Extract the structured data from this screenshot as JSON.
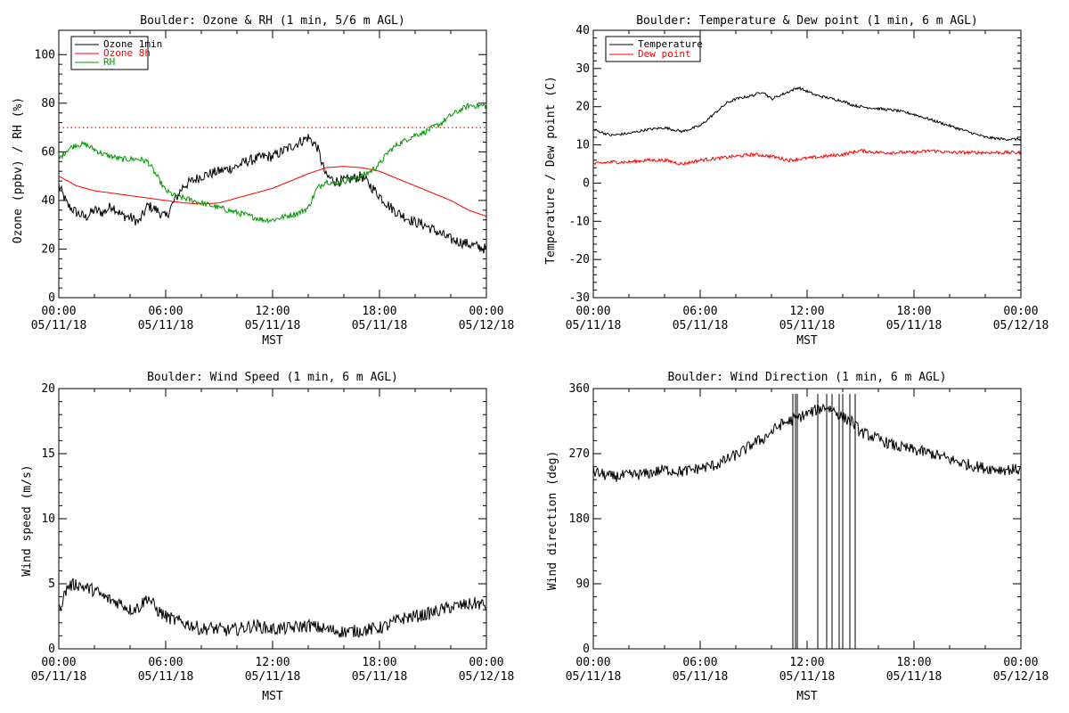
{
  "chart_data": [
    {
      "type": "line",
      "title": "Boulder: Ozone & RH (1 min, 5/6 m AGL)",
      "xlabel": "MST",
      "ylabel": "Ozone (ppbv) / RH (%)",
      "xlim": [
        0,
        24
      ],
      "ylim": [
        0,
        110
      ],
      "xticks": [
        {
          "v": 0,
          "time": "00:00",
          "date": "05/11/18"
        },
        {
          "v": 6,
          "time": "06:00",
          "date": "05/11/18"
        },
        {
          "v": 12,
          "time": "12:00",
          "date": "05/11/18"
        },
        {
          "v": 18,
          "time": "18:00",
          "date": "05/11/18"
        },
        {
          "v": 24,
          "time": "00:00",
          "date": "05/12/18"
        }
      ],
      "yticks": [
        0,
        20,
        40,
        60,
        80,
        100
      ],
      "reference_line": {
        "y": 70,
        "color": "#ff0000",
        "style": "dotted"
      },
      "legend_position": "top-left",
      "series": [
        {
          "name": "Ozone 1min",
          "color": "#000000",
          "noise": 2.2,
          "x": [
            0,
            0.5,
            1,
            1.5,
            2,
            2.5,
            3,
            3.5,
            4,
            4.5,
            5,
            5.5,
            6,
            6.5,
            7,
            7.5,
            8,
            8.5,
            9,
            9.5,
            10,
            10.5,
            11,
            11.5,
            12,
            12.5,
            13,
            13.5,
            14,
            14.5,
            15,
            15.5,
            16,
            16.5,
            17,
            17.5,
            18,
            18.5,
            19,
            19.5,
            20,
            20.5,
            21,
            21.5,
            22,
            22.5,
            23,
            23.5,
            24
          ],
          "y": [
            46,
            38,
            35,
            33,
            36,
            35,
            38,
            34,
            33,
            31,
            38,
            36,
            33,
            40,
            46,
            48,
            50,
            51,
            52,
            53,
            54,
            56,
            57,
            58,
            58,
            60,
            62,
            64,
            66,
            62,
            50,
            48,
            48,
            49,
            50,
            46,
            42,
            38,
            35,
            33,
            31,
            30,
            28,
            26,
            24,
            23,
            22,
            21,
            20
          ]
        },
        {
          "name": "Ozone 8h",
          "color": "#ff0000",
          "noise": 0,
          "x": [
            0,
            1,
            2,
            3,
            4,
            5,
            6,
            7,
            8,
            9,
            10,
            11,
            12,
            13,
            14,
            15,
            16,
            17,
            18,
            19,
            20,
            21,
            22,
            23,
            24
          ],
          "y": [
            50,
            46,
            44,
            43,
            42,
            41,
            40,
            39,
            38.5,
            39,
            41,
            43,
            45,
            48,
            51,
            53.5,
            54,
            53.5,
            52,
            49,
            46,
            43,
            40,
            36,
            33.5
          ]
        },
        {
          "name": "RH",
          "color": "#009900",
          "noise": 1.2,
          "x": [
            0,
            0.5,
            1,
            1.5,
            2,
            2.5,
            3,
            3.5,
            4,
            4.5,
            5,
            5.5,
            6,
            6.5,
            7,
            7.5,
            8,
            8.5,
            9,
            9.5,
            10,
            10.5,
            11,
            11.5,
            12,
            12.5,
            13,
            13.5,
            14,
            14.5,
            15,
            15.5,
            16,
            16.5,
            17,
            17.5,
            18,
            18.5,
            19,
            19.5,
            20,
            20.5,
            21,
            21.5,
            22,
            22.5,
            23,
            23.5,
            24
          ],
          "y": [
            57,
            61,
            63,
            63,
            61,
            59,
            58,
            57,
            57,
            57,
            56,
            50,
            44,
            42,
            41,
            40,
            39,
            38,
            37,
            36,
            35,
            34,
            33,
            32,
            32,
            33,
            34,
            35,
            37,
            45,
            48,
            47,
            48,
            49,
            50,
            52,
            55,
            60,
            63,
            65,
            67,
            68,
            70,
            72,
            75,
            77,
            79,
            79,
            79
          ]
        }
      ]
    },
    {
      "type": "line",
      "title": "Boulder: Temperature & Dew point (1 min, 6 m AGL)",
      "xlabel": "MST",
      "ylabel": "Temperature / Dew point (C)",
      "xlim": [
        0,
        24
      ],
      "ylim": [
        -30,
        40
      ],
      "xticks": [
        {
          "v": 0,
          "time": "00:00",
          "date": "05/11/18"
        },
        {
          "v": 6,
          "time": "06:00",
          "date": "05/11/18"
        },
        {
          "v": 12,
          "time": "12:00",
          "date": "05/11/18"
        },
        {
          "v": 18,
          "time": "18:00",
          "date": "05/11/18"
        },
        {
          "v": 24,
          "time": "00:00",
          "date": "05/12/18"
        }
      ],
      "yticks": [
        -30,
        -20,
        -10,
        0,
        10,
        20,
        30,
        40
      ],
      "legend_position": "top-left",
      "series": [
        {
          "name": "Temperature",
          "color": "#000000",
          "noise": 0.35,
          "x": [
            0,
            1,
            2,
            3,
            4,
            5,
            6,
            6.5,
            7,
            7.5,
            8,
            8.5,
            9,
            9.5,
            10,
            10.5,
            11,
            11.5,
            12,
            12.5,
            13,
            13.5,
            14,
            14.5,
            15,
            16,
            17,
            18,
            19,
            20,
            21,
            22,
            23,
            24
          ],
          "y": [
            14,
            12.5,
            13,
            14,
            14.5,
            13.5,
            15,
            17,
            19,
            21,
            22,
            22.5,
            23,
            24,
            22,
            23,
            24,
            25,
            24,
            23,
            22.5,
            22,
            21.5,
            20.5,
            20,
            19.5,
            19,
            18,
            16.5,
            15,
            13.5,
            12,
            11.5,
            11.5
          ]
        },
        {
          "name": "Dew point",
          "color": "#ff0000",
          "noise": 0.45,
          "x": [
            0,
            1,
            2,
            3,
            4,
            5,
            6,
            7,
            8,
            9,
            10,
            11,
            12,
            13,
            14,
            15,
            16,
            17,
            18,
            19,
            20,
            21,
            22,
            23,
            24
          ],
          "y": [
            5,
            5.5,
            5.5,
            6,
            6,
            5,
            6,
            6.5,
            7,
            7.5,
            7,
            6,
            6.5,
            7,
            7.5,
            8.5,
            8,
            8,
            8,
            8.5,
            8,
            8,
            8,
            8,
            8
          ]
        }
      ]
    },
    {
      "type": "line",
      "title": "Boulder: Wind Speed (1 min, 6 m AGL)",
      "xlabel": "MST",
      "ylabel": "Wind speed (m/s)",
      "xlim": [
        0,
        24
      ],
      "ylim": [
        0,
        20
      ],
      "xticks": [
        {
          "v": 0,
          "time": "00:00",
          "date": "05/11/18"
        },
        {
          "v": 6,
          "time": "06:00",
          "date": "05/11/18"
        },
        {
          "v": 12,
          "time": "12:00",
          "date": "05/11/18"
        },
        {
          "v": 18,
          "time": "18:00",
          "date": "05/11/18"
        },
        {
          "v": 24,
          "time": "00:00",
          "date": "05/12/18"
        }
      ],
      "yticks": [
        0,
        5,
        10,
        15,
        20
      ],
      "series": [
        {
          "name": "",
          "color": "#000000",
          "noise": 0.5,
          "x": [
            0,
            0.5,
            1,
            1.5,
            2,
            2.5,
            3,
            3.5,
            4,
            4.5,
            5,
            5.5,
            6,
            6.5,
            7,
            7.5,
            8,
            8.5,
            9,
            9.5,
            10,
            11,
            12,
            13,
            14,
            15,
            16,
            17,
            18,
            18.5,
            19,
            19.5,
            20,
            20.5,
            21,
            21.5,
            22,
            22.5,
            23,
            23.5,
            24
          ],
          "y": [
            3,
            4.8,
            5,
            4.7,
            4.5,
            4,
            3.7,
            3.5,
            3,
            3.2,
            4,
            3,
            2.5,
            2.2,
            2,
            1.8,
            1.5,
            1.6,
            1.5,
            1.4,
            1.5,
            1.8,
            1.5,
            1.6,
            1.8,
            1.5,
            1.3,
            1.4,
            1.6,
            1.8,
            2.2,
            2.4,
            2.5,
            2.6,
            2.8,
            3,
            3.2,
            3.3,
            3.4,
            3.5,
            3.3
          ]
        }
      ]
    },
    {
      "type": "line",
      "title": "Boulder: Wind Direction (1 min, 6 m AGL)",
      "xlabel": "MST",
      "ylabel": "Wind direction (deg)",
      "xlim": [
        0,
        24
      ],
      "ylim": [
        0,
        360
      ],
      "xticks": [
        {
          "v": 0,
          "time": "00:00",
          "date": "05/11/18"
        },
        {
          "v": 6,
          "time": "06:00",
          "date": "05/11/18"
        },
        {
          "v": 12,
          "time": "12:00",
          "date": "05/11/18"
        },
        {
          "v": 18,
          "time": "18:00",
          "date": "05/11/18"
        },
        {
          "v": 24,
          "time": "00:00",
          "date": "05/12/18"
        }
      ],
      "yticks": [
        0,
        90,
        180,
        270,
        360
      ],
      "series": [
        {
          "name": "",
          "color": "#000000",
          "noise": 8,
          "x": [
            0,
            1,
            2,
            3,
            4,
            5,
            6,
            7,
            7.5,
            8,
            8.5,
            9,
            9.5,
            10,
            10.5,
            11,
            11.5,
            12,
            12.5,
            13,
            13.5,
            14,
            14.5,
            15,
            16,
            17,
            18,
            19,
            20,
            21,
            22,
            23,
            24
          ],
          "y": [
            245,
            238,
            240,
            242,
            248,
            245,
            250,
            255,
            262,
            268,
            275,
            285,
            290,
            300,
            310,
            315,
            320,
            325,
            330,
            335,
            330,
            320,
            315,
            300,
            290,
            280,
            275,
            270,
            262,
            255,
            250,
            248,
            248
          ]
        }
      ],
      "dropouts_x": [
        11.2,
        11.35,
        11.45,
        12.6,
        13.1,
        13.4,
        13.8,
        14.0,
        14.4,
        14.7
      ]
    }
  ]
}
